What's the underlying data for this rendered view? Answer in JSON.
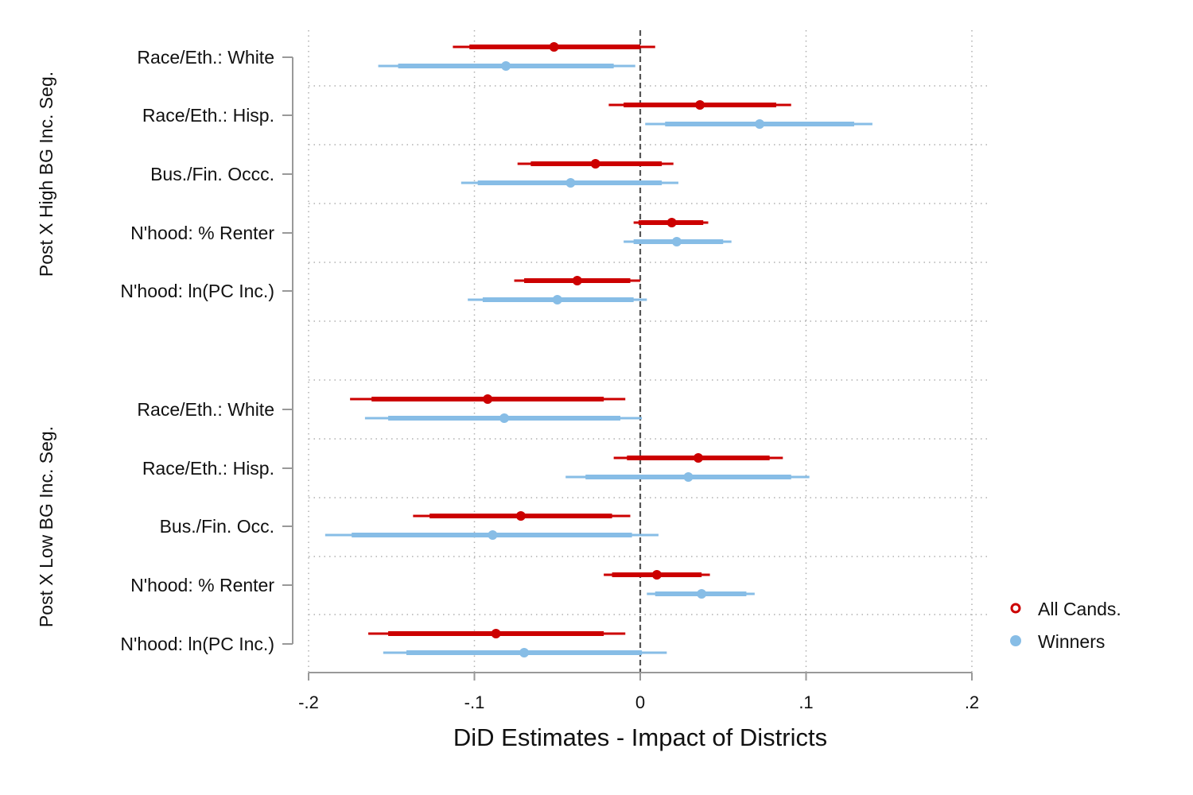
{
  "chart_data": {
    "type": "coefficient-plot",
    "xlabel": "DiD Estimates - Impact of Districts",
    "xlim": [
      -0.2,
      0.2
    ],
    "xticks": [
      {
        "value": -0.2,
        "label": "-.2"
      },
      {
        "value": -0.1,
        "label": "-.1"
      },
      {
        "value": 0,
        "label": "0"
      },
      {
        "value": 0.1,
        "label": ".1"
      },
      {
        "value": 0.2,
        "label": ".2"
      }
    ],
    "reference_line": 0,
    "legend": {
      "position": "bottom-right",
      "entries": [
        {
          "key": "all",
          "label": "All Cands."
        },
        {
          "key": "win",
          "label": "Winners"
        }
      ]
    },
    "series": [
      {
        "key": "all",
        "name": "All Cands.",
        "color": "#cc0000"
      },
      {
        "key": "win",
        "name": "Winners",
        "color": "#87bde6"
      }
    ],
    "groups": [
      {
        "label": "Post X High BG Inc. Seg.",
        "rows": [
          {
            "label": "Race/Eth.: White",
            "all": {
              "est": -0.052,
              "ci90": [
                -0.103,
                0.0
              ],
              "ci95": [
                -0.113,
                0.009
              ]
            },
            "win": {
              "est": -0.081,
              "ci90": [
                -0.146,
                -0.016
              ],
              "ci95": [
                -0.158,
                -0.003
              ]
            }
          },
          {
            "label": "Race/Eth.: Hisp.",
            "all": {
              "est": 0.036,
              "ci90": [
                -0.01,
                0.082
              ],
              "ci95": [
                -0.019,
                0.091
              ]
            },
            "win": {
              "est": 0.072,
              "ci90": [
                0.015,
                0.129
              ],
              "ci95": [
                0.003,
                0.14
              ]
            }
          },
          {
            "label": "Bus./Fin. Occc.",
            "all": {
              "est": -0.027,
              "ci90": [
                -0.066,
                0.013
              ],
              "ci95": [
                -0.074,
                0.02
              ]
            },
            "win": {
              "est": -0.042,
              "ci90": [
                -0.098,
                0.013
              ],
              "ci95": [
                -0.108,
                0.023
              ]
            }
          },
          {
            "label": "N'hood: % Renter",
            "all": {
              "est": 0.019,
              "ci90": [
                -0.001,
                0.038
              ],
              "ci95": [
                -0.004,
                0.041
              ]
            },
            "win": {
              "est": 0.022,
              "ci90": [
                -0.004,
                0.05
              ],
              "ci95": [
                -0.01,
                0.055
              ]
            }
          },
          {
            "label": "N'hood: ln(PC Inc.)",
            "all": {
              "est": -0.038,
              "ci90": [
                -0.07,
                -0.006
              ],
              "ci95": [
                -0.076,
                0.0
              ]
            },
            "win": {
              "est": -0.05,
              "ci90": [
                -0.095,
                -0.004
              ],
              "ci95": [
                -0.104,
                0.004
              ]
            }
          }
        ]
      },
      {
        "label": "Post X Low BG Inc. Seg.",
        "rows": [
          {
            "label": "Race/Eth.: White",
            "all": {
              "est": -0.092,
              "ci90": [
                -0.162,
                -0.022
              ],
              "ci95": [
                -0.175,
                -0.009
              ]
            },
            "win": {
              "est": -0.082,
              "ci90": [
                -0.152,
                -0.012
              ],
              "ci95": [
                -0.166,
                0.001
              ]
            }
          },
          {
            "label": "Race/Eth.: Hisp.",
            "all": {
              "est": 0.035,
              "ci90": [
                -0.008,
                0.078
              ],
              "ci95": [
                -0.016,
                0.086
              ]
            },
            "win": {
              "est": 0.029,
              "ci90": [
                -0.033,
                0.091
              ],
              "ci95": [
                -0.045,
                0.102
              ]
            }
          },
          {
            "label": "Bus./Fin. Occ.",
            "all": {
              "est": -0.072,
              "ci90": [
                -0.127,
                -0.017
              ],
              "ci95": [
                -0.137,
                -0.006
              ]
            },
            "win": {
              "est": -0.089,
              "ci90": [
                -0.174,
                -0.005
              ],
              "ci95": [
                -0.19,
                0.011
              ]
            }
          },
          {
            "label": "N'hood: % Renter",
            "all": {
              "est": 0.01,
              "ci90": [
                -0.017,
                0.037
              ],
              "ci95": [
                -0.022,
                0.042
              ]
            },
            "win": {
              "est": 0.037,
              "ci90": [
                0.009,
                0.064
              ],
              "ci95": [
                0.004,
                0.069
              ]
            }
          },
          {
            "label": "N'hood: ln(PC Inc.)",
            "all": {
              "est": -0.087,
              "ci90": [
                -0.152,
                -0.022
              ],
              "ci95": [
                -0.164,
                -0.009
              ]
            },
            "win": {
              "est": -0.07,
              "ci90": [
                -0.141,
                0.001
              ],
              "ci95": [
                -0.155,
                0.016
              ]
            }
          }
        ]
      }
    ]
  }
}
